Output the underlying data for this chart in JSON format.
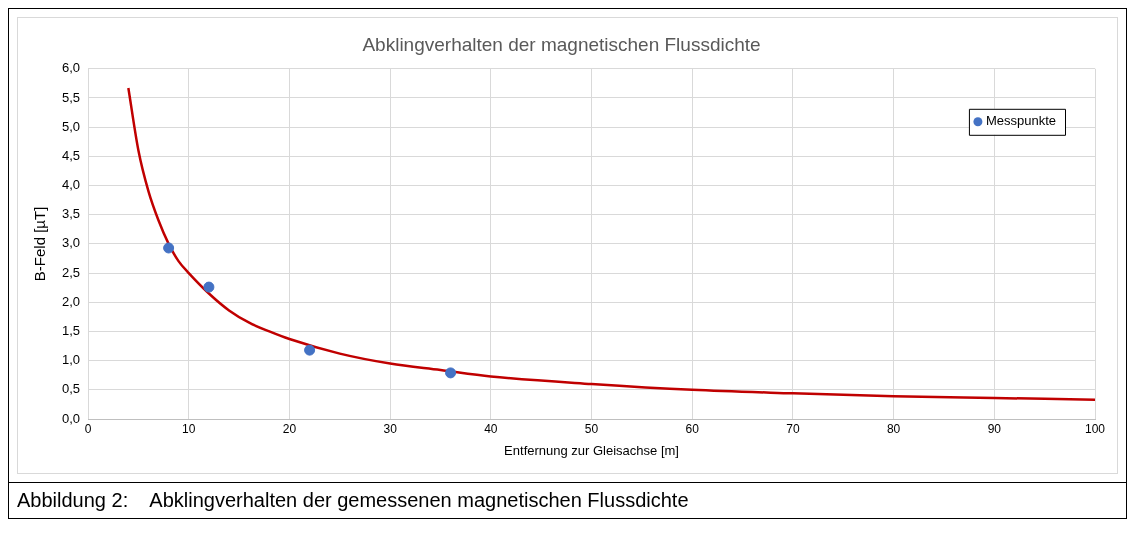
{
  "chart_data": {
    "type": "scatter",
    "title": "Abklingverhalten der magnetischen Flussdichte",
    "xlabel": "Entfernung zur Gleisachse [m]",
    "ylabel": "B-Feld [µT]",
    "annotations": [
      "Abbildung 2:    Abklingverhalten der gemessenen magnetischen Flussdichte"
    ],
    "series": [
      {
        "name": "Messpunkte",
        "color": "#4472c4",
        "marker": "circle",
        "x": [
          8,
          12,
          22,
          36
        ],
        "values": [
          2.93,
          2.26,
          1.18,
          0.79
        ]
      },
      {
        "type": "line",
        "color": "#c00000",
        "marker": "none",
        "line_style": "solid",
        "x": [
          4,
          5,
          6,
          7,
          8,
          9,
          10,
          12,
          14,
          16,
          18,
          20,
          25,
          30,
          35,
          40,
          50,
          60,
          70,
          80,
          90,
          100
        ],
        "values": [
          5.67,
          4.6,
          3.9,
          3.4,
          3.0,
          2.7,
          2.5,
          2.15,
          1.86,
          1.65,
          1.5,
          1.37,
          1.12,
          0.95,
          0.84,
          0.73,
          0.6,
          0.5,
          0.44,
          0.39,
          0.36,
          0.33
        ]
      }
    ],
    "xlim": [
      0,
      100
    ],
    "xticks": [
      0,
      10,
      20,
      30,
      40,
      50,
      60,
      70,
      80,
      90,
      100
    ],
    "ylim": [
      0,
      6
    ],
    "yticks": [
      {
        "value": 0,
        "label": "0,0"
      },
      {
        "value": 0.5,
        "label": "0,5"
      },
      {
        "value": 1,
        "label": "1,0"
      },
      {
        "value": 1.5,
        "label": "1,5"
      },
      {
        "value": 2,
        "label": "2,0"
      },
      {
        "value": 2.5,
        "label": "2,5"
      },
      {
        "value": 3,
        "label": "3,0"
      },
      {
        "value": 3.5,
        "label": "3,5"
      },
      {
        "value": 4,
        "label": "4,0"
      },
      {
        "value": 4.5,
        "label": "4,5"
      },
      {
        "value": 5,
        "label": "5,0"
      },
      {
        "value": 5.5,
        "label": "5,5"
      },
      {
        "value": 6,
        "label": "6,0"
      }
    ],
    "grid": true,
    "legend": "top right"
  }
}
